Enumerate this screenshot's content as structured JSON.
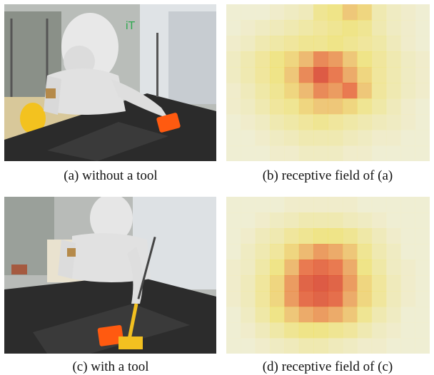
{
  "figure": {
    "panels": [
      {
        "id": "a",
        "caption": "(a) without a tool",
        "kind": "photo",
        "scene": "robot-reaching-object"
      },
      {
        "id": "b",
        "caption": "(b) receptive field of (a)",
        "kind": "heatmap",
        "scene": "receptive-field-grid"
      },
      {
        "id": "c",
        "caption": "(c) with a tool",
        "kind": "photo",
        "scene": "robot-with-tool"
      },
      {
        "id": "d",
        "caption": "(d) receptive field of (c)",
        "kind": "heatmap",
        "scene": "receptive-field-grid"
      }
    ],
    "colors": {
      "heat_low": "#f2f0c8",
      "heat_mid": "#f0e060",
      "heat_high": "#e86030",
      "heat_peak": "#d03028",
      "table": "#2a2a2a",
      "robot": "#e4e4e4",
      "object": "#ff5a10",
      "tool": "#f2c020"
    },
    "heatmap_b_levels": [
      [
        0.0,
        0.0,
        0.0,
        0.05,
        0.1,
        0.15,
        0.35,
        0.4,
        0.5,
        0.45,
        0.2,
        0.1,
        0.05,
        0.0
      ],
      [
        0.0,
        0.05,
        0.1,
        0.15,
        0.2,
        0.25,
        0.3,
        0.35,
        0.4,
        0.35,
        0.2,
        0.1,
        0.05,
        0.0
      ],
      [
        0.05,
        0.1,
        0.2,
        0.25,
        0.3,
        0.35,
        0.35,
        0.4,
        0.35,
        0.3,
        0.25,
        0.15,
        0.05,
        0.0
      ],
      [
        0.1,
        0.2,
        0.3,
        0.4,
        0.45,
        0.55,
        0.7,
        0.65,
        0.5,
        0.4,
        0.3,
        0.2,
        0.1,
        0.05
      ],
      [
        0.1,
        0.2,
        0.3,
        0.4,
        0.5,
        0.7,
        0.9,
        0.75,
        0.6,
        0.45,
        0.3,
        0.2,
        0.1,
        0.05
      ],
      [
        0.05,
        0.15,
        0.25,
        0.35,
        0.45,
        0.55,
        0.7,
        0.65,
        0.75,
        0.5,
        0.3,
        0.2,
        0.1,
        0.05
      ],
      [
        0.05,
        0.1,
        0.2,
        0.3,
        0.35,
        0.45,
        0.5,
        0.5,
        0.45,
        0.35,
        0.25,
        0.15,
        0.05,
        0.0
      ],
      [
        0.0,
        0.05,
        0.1,
        0.2,
        0.25,
        0.3,
        0.35,
        0.3,
        0.25,
        0.2,
        0.15,
        0.1,
        0.05,
        0.0
      ],
      [
        0.0,
        0.0,
        0.05,
        0.1,
        0.15,
        0.2,
        0.2,
        0.2,
        0.15,
        0.1,
        0.05,
        0.05,
        0.0,
        0.0
      ],
      [
        0.0,
        0.0,
        0.0,
        0.05,
        0.05,
        0.1,
        0.1,
        0.1,
        0.05,
        0.05,
        0.0,
        0.0,
        0.0,
        0.0
      ]
    ],
    "heatmap_d_levels": [
      [
        0.0,
        0.0,
        0.0,
        0.0,
        0.05,
        0.05,
        0.05,
        0.05,
        0.05,
        0.0,
        0.0,
        0.0,
        0.0,
        0.0
      ],
      [
        0.0,
        0.0,
        0.05,
        0.1,
        0.15,
        0.2,
        0.2,
        0.2,
        0.15,
        0.1,
        0.05,
        0.0,
        0.0,
        0.0
      ],
      [
        0.0,
        0.05,
        0.15,
        0.2,
        0.3,
        0.35,
        0.4,
        0.4,
        0.35,
        0.25,
        0.15,
        0.05,
        0.0,
        0.0
      ],
      [
        0.0,
        0.1,
        0.2,
        0.3,
        0.45,
        0.55,
        0.65,
        0.6,
        0.5,
        0.35,
        0.2,
        0.1,
        0.0,
        0.0
      ],
      [
        0.05,
        0.1,
        0.25,
        0.4,
        0.55,
        0.75,
        0.8,
        0.75,
        0.6,
        0.4,
        0.25,
        0.1,
        0.05,
        0.0
      ],
      [
        0.05,
        0.15,
        0.3,
        0.45,
        0.65,
        0.85,
        0.9,
        0.85,
        0.65,
        0.45,
        0.3,
        0.15,
        0.05,
        0.0
      ],
      [
        0.05,
        0.15,
        0.3,
        0.45,
        0.65,
        0.8,
        0.85,
        0.8,
        0.6,
        0.45,
        0.3,
        0.15,
        0.05,
        0.0
      ],
      [
        0.0,
        0.1,
        0.25,
        0.4,
        0.5,
        0.6,
        0.65,
        0.6,
        0.5,
        0.35,
        0.2,
        0.1,
        0.0,
        0.0
      ],
      [
        0.0,
        0.05,
        0.15,
        0.25,
        0.35,
        0.4,
        0.4,
        0.35,
        0.3,
        0.2,
        0.1,
        0.05,
        0.0,
        0.0
      ],
      [
        0.0,
        0.0,
        0.05,
        0.1,
        0.15,
        0.2,
        0.2,
        0.15,
        0.1,
        0.05,
        0.05,
        0.0,
        0.0,
        0.0
      ]
    ]
  }
}
